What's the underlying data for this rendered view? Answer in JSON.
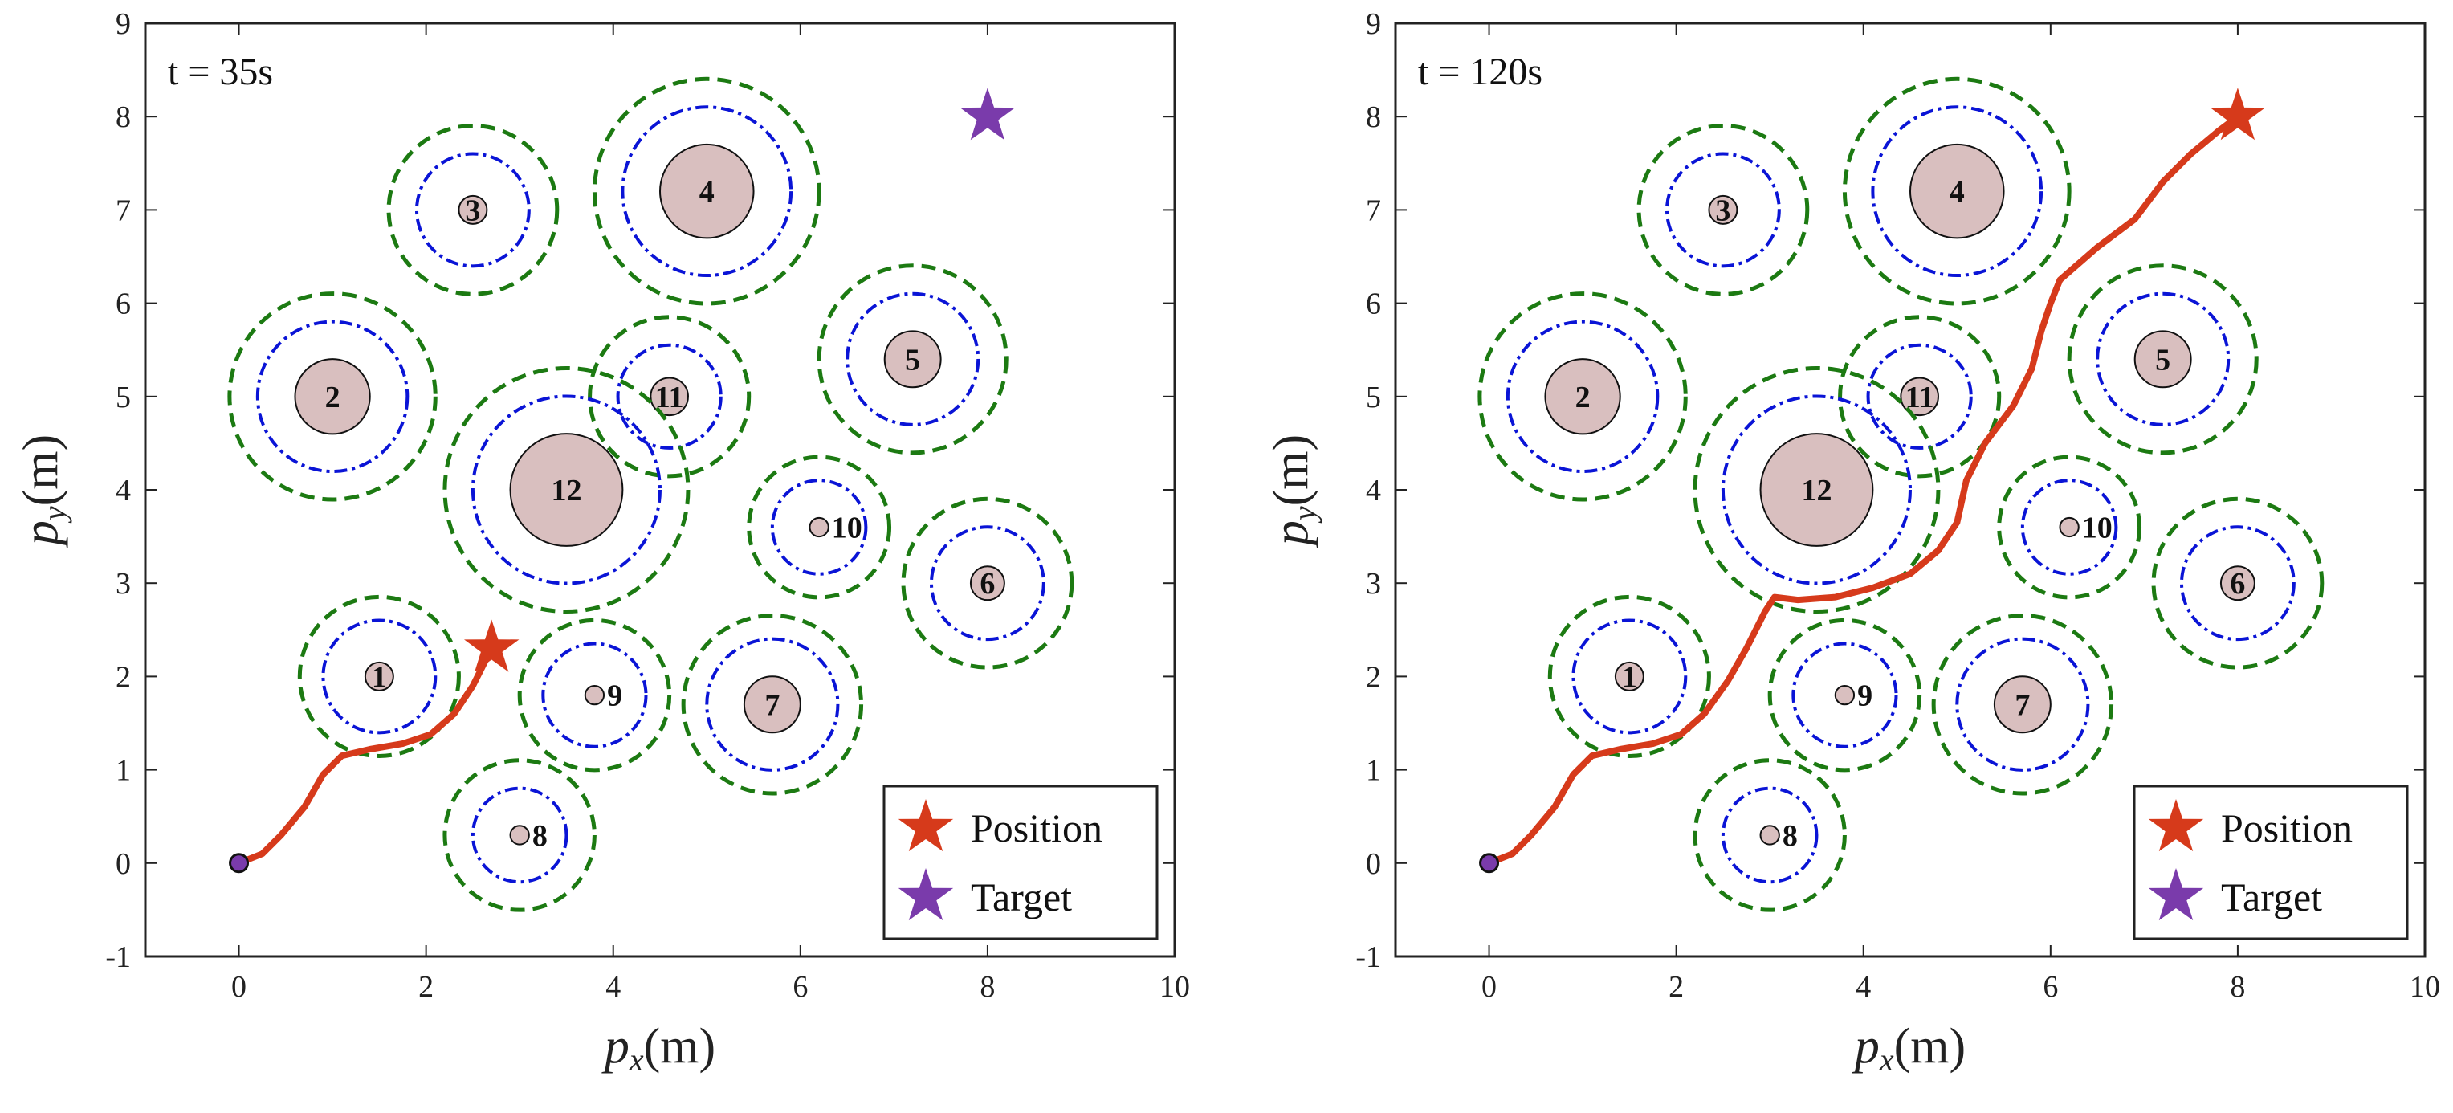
{
  "chart_data": [
    {
      "type": "scatter",
      "annotation": "t = 35s",
      "xlabel": {
        "var": "p",
        "sub": "x",
        "unit": "(m)"
      },
      "ylabel": {
        "var": "p",
        "sub": "y",
        "unit": "(m)"
      },
      "xlim": [
        -1,
        10
      ],
      "ylim": [
        -1,
        9
      ],
      "xticks": [
        0,
        2,
        4,
        6,
        8,
        10
      ],
      "yticks": [
        -1,
        0,
        1,
        2,
        3,
        4,
        5,
        6,
        7,
        8,
        9
      ],
      "grid": false,
      "legend": {
        "position": "bottom-right",
        "entries": [
          "Position",
          "Target"
        ]
      },
      "colors": {
        "trajectory": "#d63a1b",
        "position": "#d63a1b",
        "target": "#7a3bab",
        "obstacle_fill": "#d9bfbf",
        "inner_ring": "#0a14d6",
        "outer_ring": "#1c7a12"
      },
      "start": [
        0,
        0
      ],
      "position": [
        2.7,
        2.3
      ],
      "target": [
        8,
        8
      ],
      "show_target": true,
      "trajectory": [
        [
          0,
          0
        ],
        [
          0.25,
          0.1
        ],
        [
          0.45,
          0.3
        ],
        [
          0.7,
          0.6
        ],
        [
          0.9,
          0.95
        ],
        [
          1.1,
          1.15
        ],
        [
          1.4,
          1.22
        ],
        [
          1.75,
          1.28
        ],
        [
          2.05,
          1.38
        ],
        [
          2.3,
          1.6
        ],
        [
          2.5,
          1.9
        ],
        [
          2.7,
          2.3
        ]
      ]
    },
    {
      "type": "scatter",
      "annotation": "t = 120s",
      "xlabel": {
        "var": "p",
        "sub": "x",
        "unit": "(m)"
      },
      "ylabel": {
        "var": "p",
        "sub": "y",
        "unit": "(m)"
      },
      "xlim": [
        -1,
        10
      ],
      "ylim": [
        -1,
        9
      ],
      "xticks": [
        0,
        2,
        4,
        6,
        8,
        10
      ],
      "yticks": [
        -1,
        0,
        1,
        2,
        3,
        4,
        5,
        6,
        7,
        8,
        9
      ],
      "grid": false,
      "legend": {
        "position": "bottom-right",
        "entries": [
          "Position",
          "Target"
        ]
      },
      "colors": {
        "trajectory": "#d63a1b",
        "position": "#d63a1b",
        "target": "#7a3bab",
        "obstacle_fill": "#d9bfbf",
        "inner_ring": "#0a14d6",
        "outer_ring": "#1c7a12"
      },
      "start": [
        0,
        0
      ],
      "position": [
        8,
        8
      ],
      "target": [
        8,
        8
      ],
      "show_target": false,
      "trajectory": [
        [
          0,
          0
        ],
        [
          0.25,
          0.1
        ],
        [
          0.45,
          0.3
        ],
        [
          0.7,
          0.6
        ],
        [
          0.9,
          0.95
        ],
        [
          1.1,
          1.15
        ],
        [
          1.4,
          1.22
        ],
        [
          1.75,
          1.28
        ],
        [
          2.05,
          1.38
        ],
        [
          2.3,
          1.6
        ],
        [
          2.55,
          1.95
        ],
        [
          2.75,
          2.3
        ],
        [
          2.95,
          2.7
        ],
        [
          3.05,
          2.85
        ],
        [
          3.3,
          2.82
        ],
        [
          3.7,
          2.85
        ],
        [
          4.1,
          2.95
        ],
        [
          4.5,
          3.1
        ],
        [
          4.8,
          3.35
        ],
        [
          5.0,
          3.65
        ],
        [
          5.1,
          4.1
        ],
        [
          5.3,
          4.5
        ],
        [
          5.6,
          4.9
        ],
        [
          5.8,
          5.3
        ],
        [
          5.9,
          5.7
        ],
        [
          6.0,
          6.0
        ],
        [
          6.1,
          6.25
        ],
        [
          6.5,
          6.6
        ],
        [
          6.9,
          6.9
        ],
        [
          7.2,
          7.3
        ],
        [
          7.5,
          7.6
        ],
        [
          7.8,
          7.85
        ],
        [
          8.0,
          8.0
        ]
      ]
    }
  ],
  "obstacles": [
    {
      "id": "1",
      "x": 1.5,
      "y": 2.0,
      "r": 0.15,
      "r_inner": 0.6,
      "r_outer": 0.85
    },
    {
      "id": "2",
      "x": 1.0,
      "y": 5.0,
      "r": 0.4,
      "r_inner": 0.8,
      "r_outer": 1.1
    },
    {
      "id": "3",
      "x": 2.5,
      "y": 7.0,
      "r": 0.15,
      "r_inner": 0.6,
      "r_outer": 0.9
    },
    {
      "id": "4",
      "x": 5.0,
      "y": 7.2,
      "r": 0.5,
      "r_inner": 0.9,
      "r_outer": 1.2
    },
    {
      "id": "5",
      "x": 7.2,
      "y": 5.4,
      "r": 0.3,
      "r_inner": 0.7,
      "r_outer": 1.0
    },
    {
      "id": "6",
      "x": 8.0,
      "y": 3.0,
      "r": 0.18,
      "r_inner": 0.6,
      "r_outer": 0.9
    },
    {
      "id": "7",
      "x": 5.7,
      "y": 1.7,
      "r": 0.3,
      "r_inner": 0.7,
      "r_outer": 0.95
    },
    {
      "id": "8",
      "x": 3.0,
      "y": 0.3,
      "r": 0.1,
      "r_inner": 0.5,
      "r_outer": 0.8
    },
    {
      "id": "9",
      "x": 3.8,
      "y": 1.8,
      "r": 0.1,
      "r_inner": 0.55,
      "r_outer": 0.8
    },
    {
      "id": "10",
      "x": 6.2,
      "y": 3.6,
      "r": 0.1,
      "r_inner": 0.5,
      "r_outer": 0.75
    },
    {
      "id": "11",
      "x": 4.6,
      "y": 5.0,
      "r": 0.2,
      "r_inner": 0.55,
      "r_outer": 0.85
    },
    {
      "id": "12",
      "x": 3.5,
      "y": 4.0,
      "r": 0.6,
      "r_inner": 1.0,
      "r_outer": 1.3
    }
  ]
}
